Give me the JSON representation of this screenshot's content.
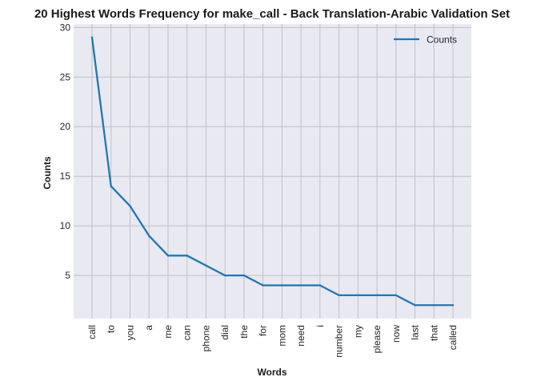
{
  "chart_data": {
    "type": "line",
    "title": "20 Highest Words Frequency for make_call - Back Translation-Arabic Validation Set",
    "xlabel": "Words",
    "ylabel": "Counts",
    "categories": [
      "call",
      "to",
      "you",
      "a",
      "me",
      "can",
      "phone",
      "dial",
      "the",
      "for",
      "mom",
      "need",
      "i",
      "number",
      "my",
      "please",
      "now",
      "last",
      "that",
      "called"
    ],
    "series": [
      {
        "name": "Counts",
        "values": [
          29,
          14,
          12,
          9,
          7,
          7,
          6,
          5,
          5,
          4,
          4,
          4,
          4,
          3,
          3,
          3,
          3,
          2,
          2,
          2
        ]
      }
    ],
    "ylim": [
      0.65,
      30.35
    ],
    "yticks": [
      5,
      10,
      15,
      20,
      25,
      30
    ],
    "grid": true,
    "legend_position": "top-right",
    "colors": {
      "line": "#1f77b4",
      "plot_background": "#e9e9f1",
      "grid": "#c0c0c8"
    }
  }
}
